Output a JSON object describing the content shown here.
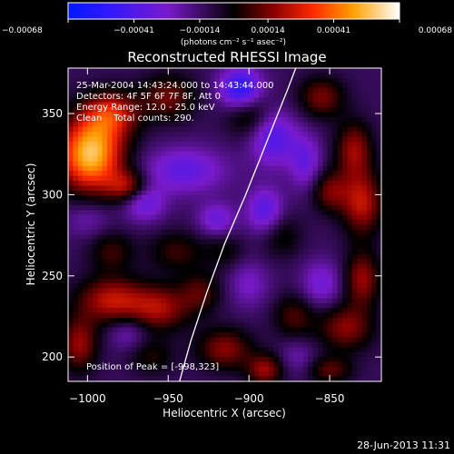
{
  "chart_data": {
    "type": "heatmap",
    "title": "Reconstructed RHESSI Image",
    "xlabel": "Heliocentric X (arcsec)",
    "ylabel": "Heliocentric Y (arcsec)",
    "xlim": [
      -1012,
      -818
    ],
    "ylim": [
      185,
      378
    ],
    "xticks": [
      -1000,
      -950,
      -900,
      -850
    ],
    "yticks": [
      200,
      250,
      300,
      350
    ],
    "xtick_labels": [
      "−1000",
      "−950",
      "−900",
      "−850"
    ],
    "ytick_labels": [
      "200",
      "250",
      "300",
      "350"
    ],
    "colorbar": {
      "range": [
        -0.00068,
        0.00068
      ],
      "ticks": [
        -0.00068,
        -0.00041,
        -0.00014,
        0.00014,
        0.00041,
        0.00068
      ],
      "tick_labels": [
        "−0.00068",
        "−0.00041",
        "−0.00014",
        "0.00014",
        "0.00041",
        "0.00068"
      ],
      "units_label": "(photons cm⁻² s⁻¹ asec⁻²)"
    },
    "info_lines": [
      "25-Mar-2004 14:43:24.000 to 14:43:44.000",
      "Detectors: 4F 5F 6F 7F 8F, Att 0",
      "Energy Range: 12.0 - 25.0 keV",
      "Clean    Total counts: 290."
    ],
    "peak_label": "Position of Peak = [-998,323]",
    "peak": [
      -998,
      323
    ],
    "limb_curve": [
      [
        -943,
        185
      ],
      [
        -936,
        210
      ],
      [
        -926,
        240
      ],
      [
        -915,
        270
      ],
      [
        -902,
        300
      ],
      [
        -892,
        325
      ],
      [
        -884,
        345
      ],
      [
        -876,
        365
      ],
      [
        -871,
        378
      ]
    ],
    "blobs": [
      {
        "x": -998,
        "y": 325,
        "sx": 14,
        "sy": 16,
        "a": 0.00068
      },
      {
        "x": -985,
        "y": 350,
        "sx": 12,
        "sy": 10,
        "a": 0.00035
      },
      {
        "x": -975,
        "y": 305,
        "sx": 9,
        "sy": 7,
        "a": 0.0003
      },
      {
        "x": -950,
        "y": 360,
        "sx": 12,
        "sy": 10,
        "a": 0.00025
      },
      {
        "x": -900,
        "y": 350,
        "sx": 10,
        "sy": 10,
        "a": 0.00022
      },
      {
        "x": -855,
        "y": 360,
        "sx": 10,
        "sy": 9,
        "a": 0.00026
      },
      {
        "x": -835,
        "y": 328,
        "sx": 8,
        "sy": 12,
        "a": 0.0003
      },
      {
        "x": -830,
        "y": 295,
        "sx": 9,
        "sy": 14,
        "a": 0.00035
      },
      {
        "x": -850,
        "y": 302,
        "sx": 8,
        "sy": 9,
        "a": 0.00025
      },
      {
        "x": -830,
        "y": 248,
        "sx": 8,
        "sy": 12,
        "a": 0.0003
      },
      {
        "x": -985,
        "y": 265,
        "sx": 10,
        "sy": 9,
        "a": 0.00018
      },
      {
        "x": -945,
        "y": 265,
        "sx": 12,
        "sy": 9,
        "a": 0.00018
      },
      {
        "x": -985,
        "y": 235,
        "sx": 15,
        "sy": 10,
        "a": 0.00035
      },
      {
        "x": -955,
        "y": 230,
        "sx": 13,
        "sy": 10,
        "a": 0.0003
      },
      {
        "x": -930,
        "y": 240,
        "sx": 9,
        "sy": 9,
        "a": 0.0002
      },
      {
        "x": -1005,
        "y": 208,
        "sx": 8,
        "sy": 12,
        "a": 0.0003
      },
      {
        "x": -960,
        "y": 200,
        "sx": 10,
        "sy": 8,
        "a": 0.00015
      },
      {
        "x": -915,
        "y": 205,
        "sx": 12,
        "sy": 9,
        "a": 0.00028
      },
      {
        "x": -890,
        "y": 192,
        "sx": 8,
        "sy": 7,
        "a": 0.0003
      },
      {
        "x": -872,
        "y": 225,
        "sx": 9,
        "sy": 10,
        "a": 0.0002
      },
      {
        "x": -840,
        "y": 218,
        "sx": 12,
        "sy": 10,
        "a": 0.00028
      },
      {
        "x": -850,
        "y": 192,
        "sx": 10,
        "sy": 6,
        "a": 0.00022
      },
      {
        "x": -915,
        "y": 265,
        "sx": 9,
        "sy": 8,
        "a": 0.00012
      },
      {
        "x": -880,
        "y": 275,
        "sx": 9,
        "sy": 10,
        "a": 0.00015
      },
      {
        "x": -905,
        "y": 365,
        "sx": 9,
        "sy": 9,
        "a": -0.00045
      },
      {
        "x": -885,
        "y": 335,
        "sx": 10,
        "sy": 12,
        "a": -0.0003
      },
      {
        "x": -890,
        "y": 290,
        "sx": 8,
        "sy": 10,
        "a": -0.00028
      },
      {
        "x": -940,
        "y": 315,
        "sx": 18,
        "sy": 10,
        "a": -0.00025
      },
      {
        "x": -965,
        "y": 295,
        "sx": 9,
        "sy": 8,
        "a": -0.00025
      },
      {
        "x": -920,
        "y": 285,
        "sx": 8,
        "sy": 7,
        "a": -0.00022
      },
      {
        "x": -865,
        "y": 320,
        "sx": 7,
        "sy": 12,
        "a": -0.00022
      },
      {
        "x": -1000,
        "y": 285,
        "sx": 10,
        "sy": 8,
        "a": -0.00012
      },
      {
        "x": -975,
        "y": 215,
        "sx": 8,
        "sy": 7,
        "a": -0.00015
      },
      {
        "x": -855,
        "y": 245,
        "sx": 9,
        "sy": 10,
        "a": -0.0002
      },
      {
        "x": -900,
        "y": 245,
        "sx": 9,
        "sy": 10,
        "a": -0.00015
      },
      {
        "x": -870,
        "y": 200,
        "sx": 8,
        "sy": 8,
        "a": -0.00012
      }
    ]
  },
  "footer": {
    "date": "28-Jun-2013 11:31"
  }
}
